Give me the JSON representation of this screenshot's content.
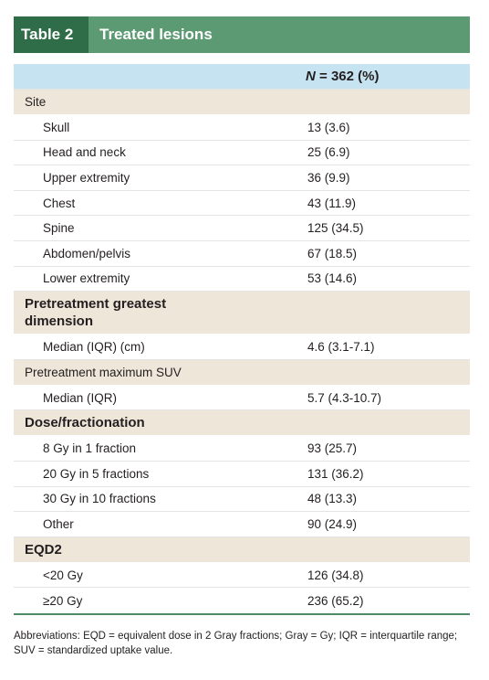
{
  "header": {
    "label": "Table 2",
    "title": "Treated lesions"
  },
  "table": {
    "column_header": {
      "symbol": "N",
      "text": "= 362 (%)"
    },
    "sections": [
      {
        "title": "Site",
        "rows": [
          [
            "Skull",
            "13 (3.6)"
          ],
          [
            "Head and neck",
            "25 (6.9)"
          ],
          [
            "Upper extremity",
            "36 (9.9)"
          ],
          [
            "Chest",
            "43 (11.9)"
          ],
          [
            "Spine",
            "125 (34.5)"
          ],
          [
            "Abdomen/pelvis",
            "67 (18.5)"
          ],
          [
            "Lower extremity",
            "53 (14.6)"
          ]
        ]
      },
      {
        "title": "Pretreatment greatest dimension",
        "rows": [
          [
            "Median (IQR) (cm)",
            "4.6 (3.1-7.1)"
          ]
        ]
      },
      {
        "title": "Pretreatment maximum SUV",
        "rows": [
          [
            "Median (IQR)",
            "5.7 (4.3-10.7)"
          ]
        ]
      },
      {
        "title": "Dose/fractionation",
        "rows": [
          [
            "8 Gy in 1 fraction",
            "93 (25.7)"
          ],
          [
            "20 Gy in 5 fractions",
            "131 (36.2)"
          ],
          [
            "30 Gy in 10 fractions",
            "48 (13.3)"
          ],
          [
            "Other",
            "90 (24.9)"
          ]
        ]
      },
      {
        "title": "EQD2",
        "rows": [
          [
            "<20 Gy",
            "126 (34.8)"
          ],
          [
            "≥20 Gy",
            "236 (65.2)"
          ]
        ]
      }
    ]
  },
  "footnote": "Abbreviations: EQD = equivalent dose in 2 Gray fractions; Gray = Gy; IQR = interquartile range; SUV = standardized uptake value."
}
